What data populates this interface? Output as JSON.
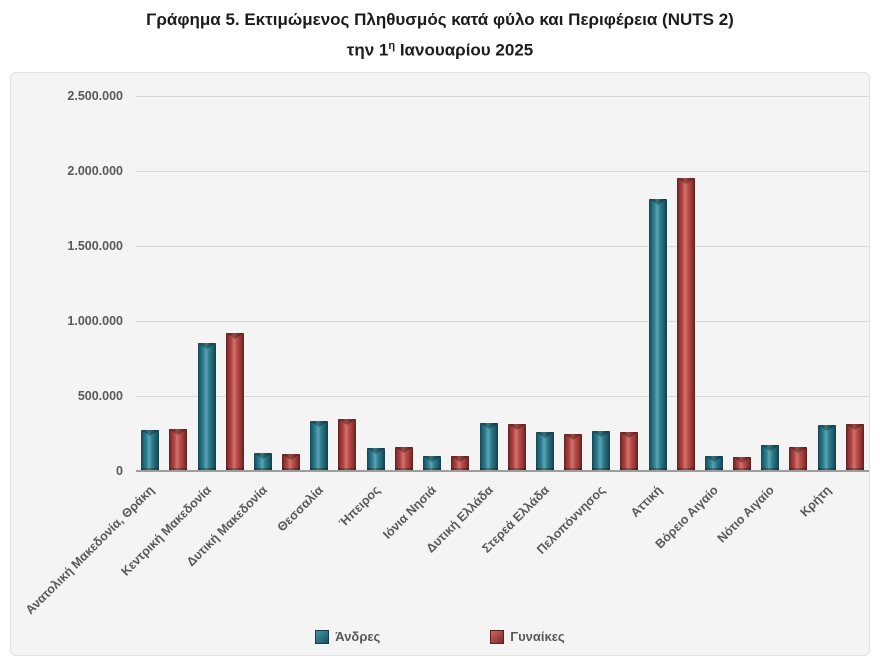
{
  "title": {
    "line1": "Γράφημα 5. Εκτιμώμενος Πληθυσμός κατά φύλο και Περιφέρεια (NUTS 2)",
    "line2_pre": "την 1",
    "line2_sup": "η",
    "line2_post": " Ιανουαρίου 2025"
  },
  "colors": {
    "men": "#2E7D8E",
    "women": "#BB4B48",
    "grid": "#D8D8D8",
    "axis": "#9D9D9D",
    "labels": "#595959",
    "title": "#1C1C1C",
    "chart_background": "#F4F4F4"
  },
  "y_axis": {
    "tick_labels": [
      "0",
      "500.000",
      "1.000.000",
      "1.500.000",
      "2.000.000",
      "2.500.000"
    ],
    "min": 0,
    "max": 2500000,
    "step": 500000
  },
  "chart_data": {
    "type": "bar",
    "title": "Γράφημα 5. Εκτιμώμενος Πληθυσμός κατά φύλο και Περιφέρεια (NUTS 2)",
    "subtitle": "την 1η Ιανουαρίου 2025",
    "categories": [
      "Ανατολική Μακεδονία, Θράκη",
      "Κεντρική Μακεδονία",
      "Δυτική Μακεδονία",
      "Θεσσαλία",
      "Ήπειρος",
      "Ιόνια Νησιά",
      "Δυτική Ελλάδα",
      "Στερεά Ελλάδα",
      "Πελοπόννησος",
      "Αττική",
      "Βόρειο Αιγαίο",
      "Νότιο Αιγαίο",
      "Κρήτη"
    ],
    "series": [
      {
        "name": "Άνδρες",
        "color": "#2E7D8E",
        "values": [
          275000,
          855000,
          120000,
          332000,
          156000,
          98000,
          322000,
          257000,
          268000,
          1810000,
          103000,
          171000,
          309000
        ]
      },
      {
        "name": "Γυναίκες",
        "color": "#BB4B48",
        "values": [
          282000,
          918000,
          114000,
          344000,
          163000,
          103000,
          316000,
          248000,
          261000,
          1952000,
          95000,
          163000,
          316000
        ]
      }
    ],
    "ylim": [
      0,
      2500000
    ],
    "grid": true,
    "legend_position": "bottom"
  }
}
